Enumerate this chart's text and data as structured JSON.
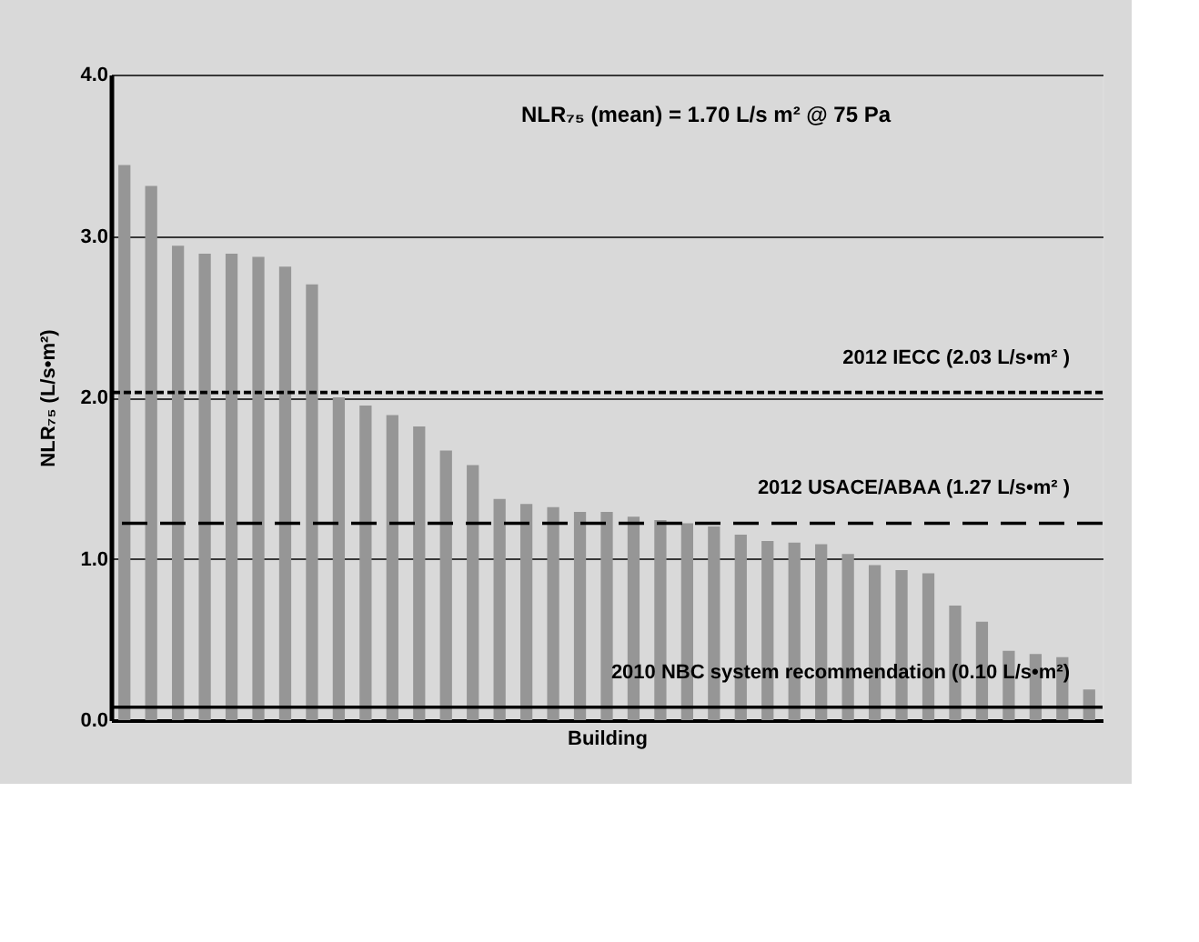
{
  "chart_data": {
    "type": "bar",
    "xlabel": "Building",
    "ylabel": "NLR₇₅ (L/s•m²)",
    "categories": [
      null,
      null,
      null,
      null,
      null,
      null,
      null,
      null,
      null,
      null,
      null,
      null,
      null,
      null,
      null,
      null,
      null,
      null,
      null,
      null,
      null,
      null,
      null,
      null,
      null,
      null,
      null,
      null,
      null,
      null,
      null,
      null,
      null,
      null,
      null,
      null,
      null
    ],
    "series": [
      {
        "color": "#969696",
        "values": [
          3.44,
          3.31,
          2.94,
          2.89,
          2.89,
          2.87,
          2.81,
          2.7,
          2.0,
          1.95,
          1.89,
          1.82,
          1.67,
          1.58,
          1.37,
          1.34,
          1.32,
          1.29,
          1.29,
          1.26,
          1.24,
          1.22,
          1.2,
          1.15,
          1.11,
          1.1,
          1.09,
          1.03,
          0.96,
          0.93,
          0.91,
          0.71,
          0.61,
          0.43,
          0.41,
          0.39,
          0.19
        ]
      }
    ],
    "ylim": [
      0,
      4
    ],
    "yticks": [
      {
        "value": 0,
        "label": "0.0"
      },
      {
        "value": 1,
        "label": "1.0"
      },
      {
        "value": 2,
        "label": "2.0"
      },
      {
        "value": 3,
        "label": "3.0"
      },
      {
        "value": 4,
        "label": "4.0"
      }
    ],
    "grid": "y",
    "ref_lines": [
      {
        "axis": "y",
        "value": 2.03,
        "label": "2012 IECC (2.03 L/s•m² )",
        "line_style": "dotted",
        "color": "#000000"
      },
      {
        "axis": "y",
        "value": 1.22,
        "label": "2012 USACE/ABAA (1.27 L/s•m² )",
        "line_style": "dashed",
        "color": "#000000"
      },
      {
        "axis": "y",
        "value": 0.08,
        "label": "2010 NBC system recommendation (0.10 L/s•m²)",
        "line_style": "solid",
        "color": "#000000"
      }
    ],
    "annotations": [
      "NLR₇₅ (mean) = 1.70 L/s m² @ 75 Pa"
    ]
  }
}
